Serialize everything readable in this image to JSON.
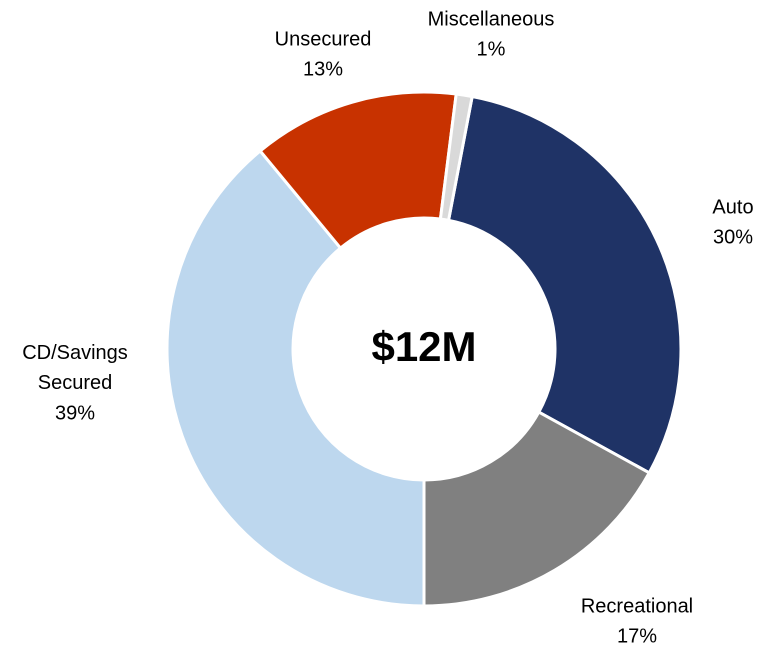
{
  "chart_data": {
    "type": "pie",
    "center_label": "$12M",
    "categories": [
      "Auto",
      "Recreational",
      "CD/Savings Secured",
      "Unsecured",
      "Miscellaneous"
    ],
    "values": [
      30,
      17,
      39,
      13,
      1
    ],
    "value_labels": [
      "30%",
      "17%",
      "39%",
      "13%",
      "1%"
    ],
    "colors": [
      "#1f3366",
      "#808080",
      "#bdd7ee",
      "#c83200",
      "#d9d9d9"
    ]
  }
}
